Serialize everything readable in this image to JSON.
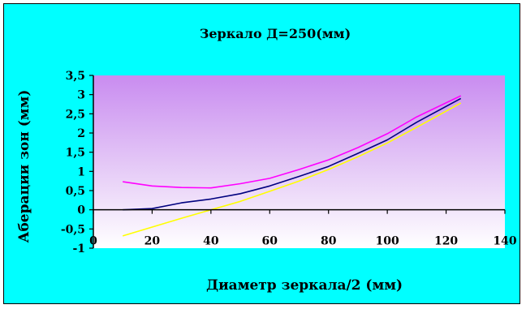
{
  "chart_data": {
    "type": "line",
    "title": "Зеркало Д=250(мм)",
    "xlabel": "Диаметр зеркала/2 (мм)",
    "ylabel": "Аберации зон (мм)",
    "xlim": [
      0,
      140
    ],
    "ylim": [
      -1,
      3.5
    ],
    "x_ticks": [
      "0",
      "20",
      "40",
      "60",
      "80",
      "100",
      "120",
      "140"
    ],
    "y_ticks": [
      "-1",
      "-0,5",
      "0",
      "0,5",
      "1",
      "1,5",
      "2",
      "2,5",
      "3",
      "3,5"
    ],
    "grid": false,
    "legend": "none",
    "plot_background": "violet-to-white gradient",
    "series": [
      {
        "color": "#ff00ff",
        "x": [
          10,
          20,
          30,
          40,
          50,
          60,
          70,
          80,
          90,
          100,
          110,
          125
        ],
        "y": [
          0.73,
          0.62,
          0.58,
          0.57,
          0.68,
          0.82,
          1.05,
          1.3,
          1.62,
          1.98,
          2.42,
          2.97
        ]
      },
      {
        "color": "#00007f",
        "x": [
          10,
          20,
          30,
          40,
          50,
          60,
          70,
          80,
          90,
          100,
          110,
          125
        ],
        "y": [
          0.0,
          0.03,
          0.18,
          0.28,
          0.42,
          0.62,
          0.87,
          1.13,
          1.47,
          1.82,
          2.28,
          2.9
        ]
      },
      {
        "color": "#ffff00",
        "x": [
          10,
          20,
          30,
          40,
          50,
          60,
          70,
          80,
          90,
          100,
          110,
          125
        ],
        "y": [
          -0.68,
          -0.45,
          -0.22,
          0.0,
          0.22,
          0.48,
          0.75,
          1.05,
          1.38,
          1.74,
          2.15,
          2.78
        ]
      }
    ]
  }
}
